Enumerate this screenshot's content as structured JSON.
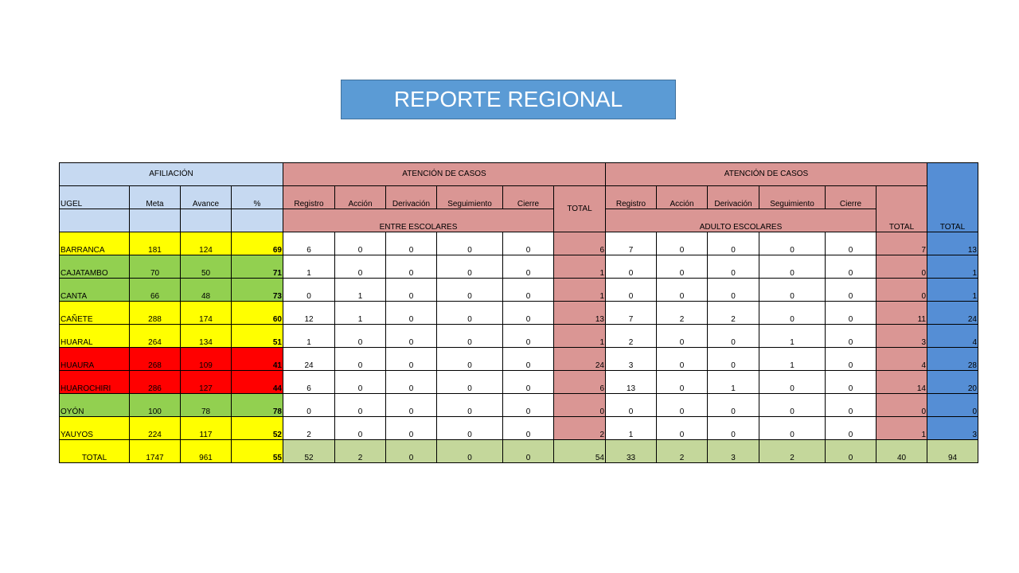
{
  "title": "REPORTE REGIONAL",
  "colors": {
    "title_bg": "#5b9bd5",
    "afiliacion_header": "#c6d9f1",
    "atencion_header": "#da9694",
    "total_header": "#558ed5",
    "yellow": "#ffff00",
    "green": "#92d050",
    "red": "#ff0000",
    "total_row": "#c4d79b"
  },
  "headers": {
    "afiliacion": "AFILIACIÓN",
    "atencion_1": "ATENCIÓN DE CASOS",
    "atencion_2": "ATENCIÓN DE CASOS",
    "ugel": "UGEL",
    "meta": "Meta",
    "avance": "Avance",
    "pct": "%",
    "registro": "Registro",
    "accion": "Acción",
    "derivacion": "Derivación",
    "seguimiento": "Seguimiento",
    "cierre": "Cierre",
    "registro_2": "Registro",
    "accion_2": "Acción",
    "derivacion_2": "Derivación",
    "seguimiento_2": "Seguimiento",
    "cierre_2": "Cierre",
    "total_escolares": "TOTAL",
    "total_adultos": "TOTAL",
    "total_general": "TOTAL",
    "entre_escolares": "ENTRE ESCOLARES",
    "adulto_escolares": "ADULTO  ESCOLARES"
  },
  "rows": [
    {
      "ugel": "BARRANCA",
      "meta": "181",
      "avance": "124",
      "pct": "69",
      "status": "yellow",
      "e": [
        "6",
        "0",
        "0",
        "0",
        "0"
      ],
      "e_total": "6",
      "a": [
        "7",
        "0",
        "0",
        "0",
        "0"
      ],
      "a_total": "7",
      "total": "13"
    },
    {
      "ugel": "CAJATAMBO",
      "meta": "70",
      "avance": "50",
      "pct": "71",
      "status": "green",
      "e": [
        "1",
        "0",
        "0",
        "0",
        "0"
      ],
      "e_total": "1",
      "a": [
        "0",
        "0",
        "0",
        "0",
        "0"
      ],
      "a_total": "0",
      "total": "1"
    },
    {
      "ugel": "CANTA",
      "meta": "66",
      "avance": "48",
      "pct": "73",
      "status": "green",
      "e": [
        "0",
        "1",
        "0",
        "0",
        "0"
      ],
      "e_total": "1",
      "a": [
        "0",
        "0",
        "0",
        "0",
        "0"
      ],
      "a_total": "0",
      "total": "1"
    },
    {
      "ugel": "CAÑETE",
      "meta": "288",
      "avance": "174",
      "pct": "60",
      "status": "yellow",
      "e": [
        "12",
        "1",
        "0",
        "0",
        "0"
      ],
      "e_total": "13",
      "a": [
        "7",
        "2",
        "2",
        "0",
        "0"
      ],
      "a_total": "11",
      "total": "24"
    },
    {
      "ugel": "HUARAL",
      "meta": "264",
      "avance": "134",
      "pct": "51",
      "status": "yellow",
      "e": [
        "1",
        "0",
        "0",
        "0",
        "0"
      ],
      "e_total": "1",
      "a": [
        "2",
        "0",
        "0",
        "1",
        "0"
      ],
      "a_total": "3",
      "total": "4"
    },
    {
      "ugel": "HUAURA",
      "meta": "268",
      "avance": "109",
      "pct": "41",
      "status": "red",
      "e": [
        "24",
        "0",
        "0",
        "0",
        "0"
      ],
      "e_total": "24",
      "a": [
        "3",
        "0",
        "0",
        "1",
        "0"
      ],
      "a_total": "4",
      "total": "28"
    },
    {
      "ugel": "HUAROCHIRI",
      "meta": "286",
      "avance": "127",
      "pct": "44",
      "status": "red",
      "e": [
        "6",
        "0",
        "0",
        "0",
        "0"
      ],
      "e_total": "6",
      "a": [
        "13",
        "0",
        "1",
        "0",
        "0"
      ],
      "a_total": "14",
      "total": "20"
    },
    {
      "ugel": "OYÓN",
      "meta": "100",
      "avance": "78",
      "pct": "78",
      "status": "green",
      "e": [
        "0",
        "0",
        "0",
        "0",
        "0"
      ],
      "e_total": "0",
      "a": [
        "0",
        "0",
        "0",
        "0",
        "0"
      ],
      "a_total": "0",
      "total": "0"
    },
    {
      "ugel": "YAUYOS",
      "meta": "224",
      "avance": "117",
      "pct": "52",
      "status": "yellow",
      "e": [
        "2",
        "0",
        "0",
        "0",
        "0"
      ],
      "e_total": "2",
      "a": [
        "1",
        "0",
        "0",
        "0",
        "0"
      ],
      "a_total": "1",
      "total": "3"
    }
  ],
  "total_row": {
    "label": "TOTAL",
    "meta": "1747",
    "avance": "961",
    "pct": "55",
    "e": [
      "52",
      "2",
      "0",
      "0",
      "0"
    ],
    "e_total": "54",
    "a": [
      "33",
      "2",
      "3",
      "2",
      "0"
    ],
    "a_total": "40",
    "total": "94"
  }
}
